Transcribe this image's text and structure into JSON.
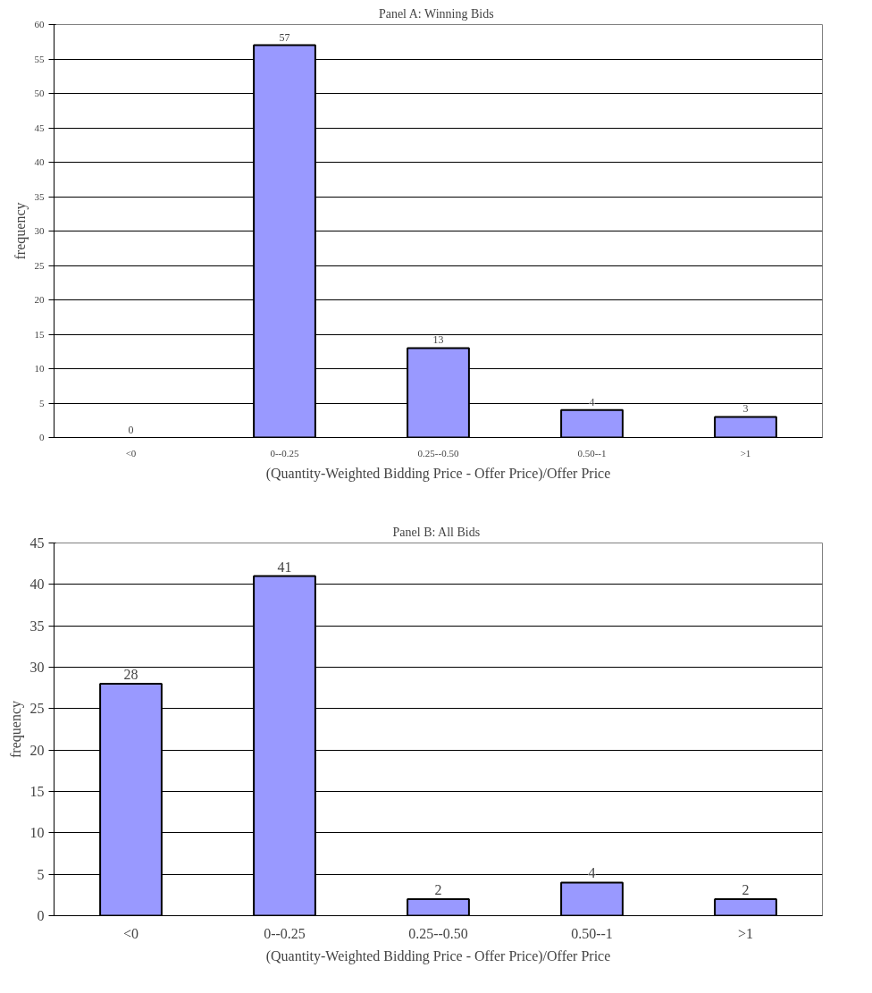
{
  "chart_data": [
    {
      "type": "bar",
      "title": "Panel A:  Winning Bids",
      "xlabel": "(Quantity-Weighted Bidding Price - Offer Price)/Offer Price",
      "ylabel": "frequency",
      "categories": [
        "<0",
        "0--0.25",
        "0.25--0.50",
        "0.50--1",
        ">1"
      ],
      "values": [
        0,
        57,
        13,
        4,
        3
      ],
      "color": "#9999ff",
      "ylim": [
        0,
        60
      ],
      "yticks": [
        0,
        5,
        10,
        15,
        20,
        25,
        30,
        35,
        40,
        45,
        50,
        55,
        60
      ],
      "grid": "y",
      "data_labels": true
    },
    {
      "type": "bar",
      "title": "Panel B:  All Bids",
      "xlabel": "(Quantity-Weighted Bidding Price - Offer Price)/Offer Price",
      "ylabel": "frequency",
      "categories": [
        "<0",
        "0--0.25",
        "0.25--0.50",
        "0.50--1",
        ">1"
      ],
      "values": [
        28,
        41,
        2,
        4,
        2
      ],
      "color": "#9999ff",
      "ylim": [
        0,
        45
      ],
      "yticks": [
        0,
        5,
        10,
        15,
        20,
        25,
        30,
        35,
        40,
        45
      ],
      "grid": "y",
      "data_labels": true
    }
  ]
}
